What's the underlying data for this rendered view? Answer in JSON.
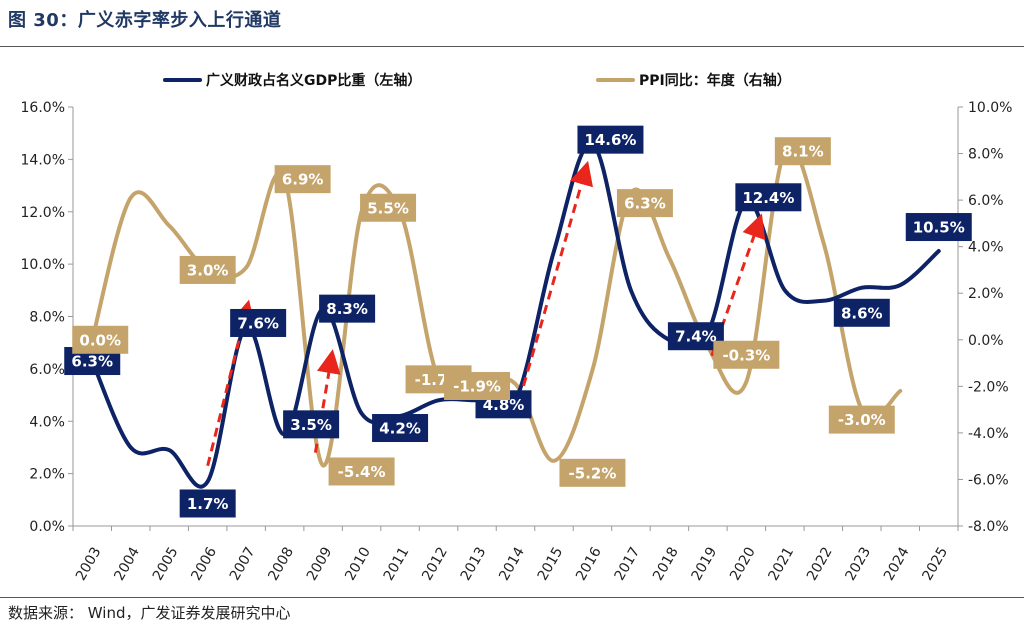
{
  "header": {
    "title": "图 30：广义赤字率步入上行通道"
  },
  "footer": {
    "source": "数据来源：  Wind，广发证券发展研究中心"
  },
  "colors": {
    "gdp_series": "#0d2366",
    "ppi_series": "#c4a46b",
    "arrow": "#e8261c"
  },
  "chart_data": {
    "type": "line",
    "x": [
      "2003",
      "2004",
      "2005",
      "2006",
      "2007",
      "2008",
      "2009",
      "2010",
      "2011",
      "2012",
      "2013",
      "2014",
      "2015",
      "2016",
      "2017",
      "2018",
      "2019",
      "2020",
      "2021",
      "2022",
      "2023",
      "2024",
      "2025"
    ],
    "series": [
      {
        "name": "广义财政占名义GDP比重（左轴）",
        "axis": "left",
        "values": [
          6.3,
          3.0,
          2.9,
          1.7,
          7.6,
          3.5,
          8.3,
          4.3,
          4.2,
          4.8,
          null,
          4.8,
          10.5,
          14.6,
          9.0,
          7.1,
          7.4,
          12.4,
          9.0,
          8.6,
          9.1,
          9.2,
          10.5
        ]
      },
      {
        "name": "PPI同比：年度（右轴）",
        "axis": "right",
        "values": [
          0.0,
          6.1,
          4.9,
          3.0,
          3.1,
          6.9,
          -5.4,
          5.5,
          5.5,
          -1.7,
          -1.9,
          -1.9,
          -5.2,
          -1.3,
          6.3,
          3.5,
          -0.3,
          -1.8,
          8.1,
          4.2,
          -3.0,
          -2.2,
          null
        ]
      }
    ],
    "annotations": [
      {
        "series": 0,
        "x": "2003",
        "text": "6.3%"
      },
      {
        "series": 0,
        "x": "2006",
        "text": "1.7%"
      },
      {
        "series": 0,
        "x": "2007",
        "text": "7.6%"
      },
      {
        "series": 0,
        "x": "2009",
        "text": "3.5%"
      },
      {
        "series": 0,
        "x": "2009",
        "text": "8.3%"
      },
      {
        "series": 0,
        "x": "2011",
        "text": "4.2%"
      },
      {
        "series": 0,
        "x": "2014",
        "text": "4.8%"
      },
      {
        "series": 0,
        "x": "2016",
        "text": "14.6%"
      },
      {
        "series": 0,
        "x": "2019",
        "text": "7.4%"
      },
      {
        "series": 0,
        "x": "2020",
        "text": "12.4%"
      },
      {
        "series": 0,
        "x": "2023",
        "text": "8.6%"
      },
      {
        "series": 0,
        "x": "2025",
        "text": "10.5%"
      },
      {
        "series": 1,
        "x": "2003",
        "text": "0.0%"
      },
      {
        "series": 1,
        "x": "2006",
        "text": "3.0%"
      },
      {
        "series": 1,
        "x": "2008",
        "text": "6.9%"
      },
      {
        "series": 1,
        "x": "2010",
        "text": "-5.4%"
      },
      {
        "series": 1,
        "x": "2011",
        "text": "5.5%"
      },
      {
        "series": 1,
        "x": "2012",
        "text": "-1.7%"
      },
      {
        "series": 1,
        "x": "2013",
        "text": "-1.9%"
      },
      {
        "series": 1,
        "x": "2016",
        "text": "-5.2%"
      },
      {
        "series": 1,
        "x": "2017",
        "text": "6.3%"
      },
      {
        "series": 1,
        "x": "2020",
        "text": "-0.3%"
      },
      {
        "series": 1,
        "x": "2021",
        "text": "8.1%"
      },
      {
        "series": 1,
        "x": "2023",
        "text": "-3.0%"
      }
    ],
    "arrows": [
      {
        "from": "2006",
        "to": "2007"
      },
      {
        "from": "2009",
        "to": "2009.5"
      },
      {
        "from": "2014",
        "to": "2016"
      },
      {
        "from": "2019",
        "to": "2020"
      }
    ],
    "y_left": {
      "min": 0,
      "max": 16,
      "ticks": [
        "0.0%",
        "2.0%",
        "4.0%",
        "6.0%",
        "8.0%",
        "10.0%",
        "12.0%",
        "14.0%",
        "16.0%"
      ]
    },
    "y_right": {
      "min": -8,
      "max": 10,
      "ticks": [
        "-8.0%",
        "-6.0%",
        "-4.0%",
        "-2.0%",
        "0.0%",
        "2.0%",
        "4.0%",
        "6.0%",
        "8.0%",
        "10.0%"
      ]
    },
    "legend_position": "top",
    "grid": false
  }
}
